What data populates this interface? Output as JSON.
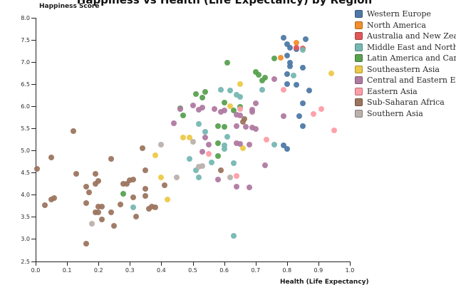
{
  "chart_data": {
    "type": "scatter",
    "title": "Happiness vs Health (Life Expectancy) by Region",
    "xlabel": "Health (Life Expectancy)",
    "ylabel": "Happiness Score",
    "xlim": [
      0.0,
      1.0
    ],
    "ylim": [
      2.5,
      8.0
    ],
    "grid": false,
    "legend_position": "top-right",
    "x_ticks": [
      "0.0",
      "0.1",
      "0.2",
      "0.3",
      "0.4",
      "0.5",
      "0.6",
      "0.7",
      "0.8",
      "0.9",
      "1.0"
    ],
    "y_ticks": [
      "2.5",
      "3.0",
      "3.5",
      "4.0",
      "4.5",
      "5.0",
      "5.5",
      "6.0",
      "6.5",
      "7.0",
      "7.5",
      "8.0"
    ],
    "series": [
      {
        "name": "Western Europe",
        "color": "#4e79a7",
        "points": [
          [
            0.79,
            7.55
          ],
          [
            0.86,
            7.52
          ],
          [
            0.8,
            7.41
          ],
          [
            0.81,
            7.33
          ],
          [
            0.83,
            7.29
          ],
          [
            0.8,
            7.15
          ],
          [
            0.81,
            6.99
          ],
          [
            0.81,
            6.91
          ],
          [
            0.85,
            6.87
          ],
          [
            0.8,
            6.73
          ],
          [
            0.8,
            6.5
          ],
          [
            0.83,
            6.49
          ],
          [
            0.87,
            6.36
          ],
          [
            0.85,
            6.06
          ],
          [
            0.84,
            5.77
          ],
          [
            0.85,
            5.55
          ],
          [
            0.79,
            5.12
          ],
          [
            0.8,
            5.03
          ]
        ]
      },
      {
        "name": "North America",
        "color": "#f28e2b",
        "points": [
          [
            0.83,
            7.44
          ],
          [
            0.78,
            7.1
          ]
        ]
      },
      {
        "name": "Australia and New Zealand",
        "color": "#e15759",
        "points": [
          [
            0.83,
            7.33
          ],
          [
            0.85,
            7.31
          ]
        ]
      },
      {
        "name": "Middle East and Northern Africa",
        "color": "#76b7b2",
        "points": [
          [
            0.85,
            7.27
          ],
          [
            0.82,
            6.7
          ],
          [
            0.72,
            6.38
          ],
          [
            0.59,
            6.38
          ],
          [
            0.62,
            6.36
          ],
          [
            0.64,
            6.26
          ],
          [
            0.65,
            6.22
          ],
          [
            0.76,
            5.13
          ],
          [
            0.52,
            5.6
          ],
          [
            0.54,
            5.42
          ],
          [
            0.61,
            5.31
          ],
          [
            0.6,
            5.12
          ],
          [
            0.6,
            5.03
          ],
          [
            0.49,
            4.81
          ],
          [
            0.56,
            4.73
          ],
          [
            0.63,
            4.71
          ],
          [
            0.51,
            4.55
          ],
          [
            0.52,
            4.39
          ],
          [
            0.31,
            3.72
          ],
          [
            0.63,
            3.07
          ]
        ]
      },
      {
        "name": "Latin America and Caribbean",
        "color": "#59a14f",
        "points": [
          [
            0.76,
            7.09
          ],
          [
            0.61,
            6.98
          ],
          [
            0.7,
            6.77
          ],
          [
            0.73,
            6.65
          ],
          [
            0.71,
            6.71
          ],
          [
            0.72,
            6.58
          ],
          [
            0.54,
            6.33
          ],
          [
            0.51,
            6.27
          ],
          [
            0.53,
            6.19
          ],
          [
            0.6,
            6.08
          ],
          [
            0.65,
            5.98
          ],
          [
            0.63,
            5.9
          ],
          [
            0.46,
            5.95
          ],
          [
            0.47,
            5.79
          ],
          [
            0.58,
            5.55
          ],
          [
            0.6,
            5.53
          ],
          [
            0.58,
            5.16
          ],
          [
            0.58,
            4.87
          ],
          [
            0.28,
            4.03
          ]
        ]
      },
      {
        "name": "Southeastern Asia",
        "color": "#edc948",
        "points": [
          [
            0.94,
            6.74
          ],
          [
            0.65,
            6.5
          ],
          [
            0.62,
            6.01
          ],
          [
            0.47,
            5.29
          ],
          [
            0.49,
            5.29
          ],
          [
            0.66,
            5.06
          ],
          [
            0.38,
            4.89
          ],
          [
            0.4,
            4.4
          ],
          [
            0.42,
            3.9
          ]
        ]
      },
      {
        "name": "Central and Eastern Europe",
        "color": "#b07aa1",
        "points": [
          [
            0.76,
            6.62
          ],
          [
            0.7,
            6.06
          ],
          [
            0.5,
            6.02
          ],
          [
            0.53,
            5.97
          ],
          [
            0.46,
            5.94
          ],
          [
            0.57,
            5.94
          ],
          [
            0.52,
            5.92
          ],
          [
            0.69,
            5.92
          ],
          [
            0.6,
            5.9
          ],
          [
            0.69,
            5.87
          ],
          [
            0.59,
            5.87
          ],
          [
            0.64,
            5.81
          ],
          [
            0.65,
            5.8
          ],
          [
            0.79,
            5.77
          ],
          [
            0.44,
            5.61
          ],
          [
            0.64,
            5.55
          ],
          [
            0.67,
            5.53
          ],
          [
            0.69,
            5.52
          ],
          [
            0.7,
            5.48
          ],
          [
            0.54,
            5.29
          ],
          [
            0.64,
            5.16
          ],
          [
            0.65,
            5.15
          ],
          [
            0.68,
            5.13
          ],
          [
            0.55,
            5.13
          ],
          [
            0.53,
            4.98
          ],
          [
            0.73,
            4.66
          ],
          [
            0.58,
            4.34
          ],
          [
            0.64,
            4.19
          ],
          [
            0.68,
            4.16
          ]
        ]
      },
      {
        "name": "Eastern Asia",
        "color": "#ff9da7",
        "points": [
          [
            0.91,
            5.94
          ],
          [
            0.885,
            5.82
          ],
          [
            0.95,
            5.45
          ],
          [
            0.79,
            6.38
          ],
          [
            0.735,
            5.24
          ],
          [
            0.65,
            5.94
          ],
          [
            0.55,
            4.92
          ],
          [
            0.64,
            4.42
          ]
        ]
      },
      {
        "name": "Sub-Saharan Africa",
        "color": "#9c755f",
        "points": [
          [
            0.665,
            5.71
          ],
          [
            0.66,
            5.65
          ],
          [
            0.12,
            5.44
          ],
          [
            0.34,
            5.06
          ],
          [
            0.05,
            4.85
          ],
          [
            0.24,
            4.81
          ],
          [
            0.005,
            4.58
          ],
          [
            0.35,
            4.55
          ],
          [
            0.59,
            4.55
          ],
          [
            0.13,
            4.47
          ],
          [
            0.19,
            4.47
          ],
          [
            0.2,
            4.31
          ],
          [
            0.3,
            4.32
          ],
          [
            0.31,
            4.34
          ],
          [
            0.29,
            4.24
          ],
          [
            0.19,
            4.24
          ],
          [
            0.28,
            4.24
          ],
          [
            0.41,
            4.22
          ],
          [
            0.16,
            4.19
          ],
          [
            0.17,
            4.06
          ],
          [
            0.35,
            4.13
          ],
          [
            0.35,
            3.97
          ],
          [
            0.31,
            3.94
          ],
          [
            0.05,
            3.89
          ],
          [
            0.06,
            3.92
          ],
          [
            0.03,
            3.76
          ],
          [
            0.27,
            3.78
          ],
          [
            0.16,
            3.81
          ],
          [
            0.2,
            3.73
          ],
          [
            0.21,
            3.74
          ],
          [
            0.19,
            3.6
          ],
          [
            0.2,
            3.6
          ],
          [
            0.24,
            3.6
          ],
          [
            0.37,
            3.73
          ],
          [
            0.36,
            3.69
          ],
          [
            0.38,
            3.71
          ],
          [
            0.21,
            3.45
          ],
          [
            0.32,
            3.5
          ],
          [
            0.25,
            3.29
          ],
          [
            0.16,
            2.89
          ]
        ]
      },
      {
        "name": "Southern Asia",
        "color": "#bab0ac",
        "points": [
          [
            0.5,
            5.19
          ],
          [
            0.4,
            5.13
          ],
          [
            0.53,
            4.65
          ],
          [
            0.52,
            4.64
          ],
          [
            0.45,
            4.4
          ],
          [
            0.62,
            4.4
          ],
          [
            0.18,
            3.34
          ]
        ]
      }
    ]
  }
}
